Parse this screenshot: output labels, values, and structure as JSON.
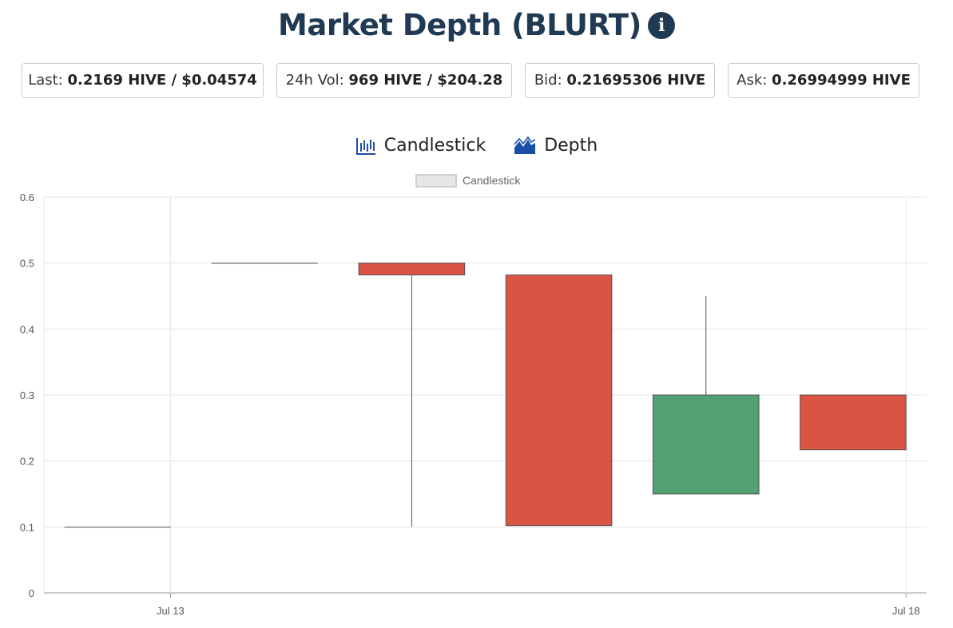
{
  "header": {
    "title": "Market Depth (BLURT)",
    "info_icon": "info-circle-icon"
  },
  "stats": [
    {
      "label": "Last: ",
      "value": "0.2169 HIVE / $0.04574"
    },
    {
      "label": "24h Vol: ",
      "value": "969 HIVE / $204.28"
    },
    {
      "label": "Bid: ",
      "value": "0.21695306 HIVE"
    },
    {
      "label": "Ask: ",
      "value": "0.26994999 HIVE"
    }
  ],
  "tabs": [
    {
      "label": "Candlestick",
      "icon": "candlestick-chart-icon"
    },
    {
      "label": "Depth",
      "icon": "area-chart-icon"
    }
  ],
  "colors": {
    "up": "#52a073",
    "down": "#d95443",
    "accent": "#1f3a52",
    "tab_icon": "#1a4fa8"
  },
  "chart_data": {
    "type": "candlestick",
    "legend": "Candlestick",
    "ylim": [
      0,
      0.6
    ],
    "yticks": [
      0,
      0.1,
      0.2,
      0.3,
      0.4,
      0.5,
      0.6
    ],
    "xticks": [
      {
        "label": "Jul 13",
        "index": 0.36
      },
      {
        "label": "Jul 18",
        "index": 5.36
      }
    ],
    "candles": [
      {
        "open": 0.1,
        "high": 0.1,
        "low": 0.1,
        "close": 0.1
      },
      {
        "open": 0.5,
        "high": 0.5,
        "low": 0.5,
        "close": 0.5
      },
      {
        "open": 0.5,
        "high": 0.5,
        "low": 0.1,
        "close": 0.482
      },
      {
        "open": 0.482,
        "high": 0.482,
        "low": 0.102,
        "close": 0.102
      },
      {
        "open": 0.15,
        "high": 0.45,
        "low": 0.15,
        "close": 0.3
      },
      {
        "open": 0.3,
        "high": 0.3,
        "low": 0.2169,
        "close": 0.2169
      }
    ]
  }
}
